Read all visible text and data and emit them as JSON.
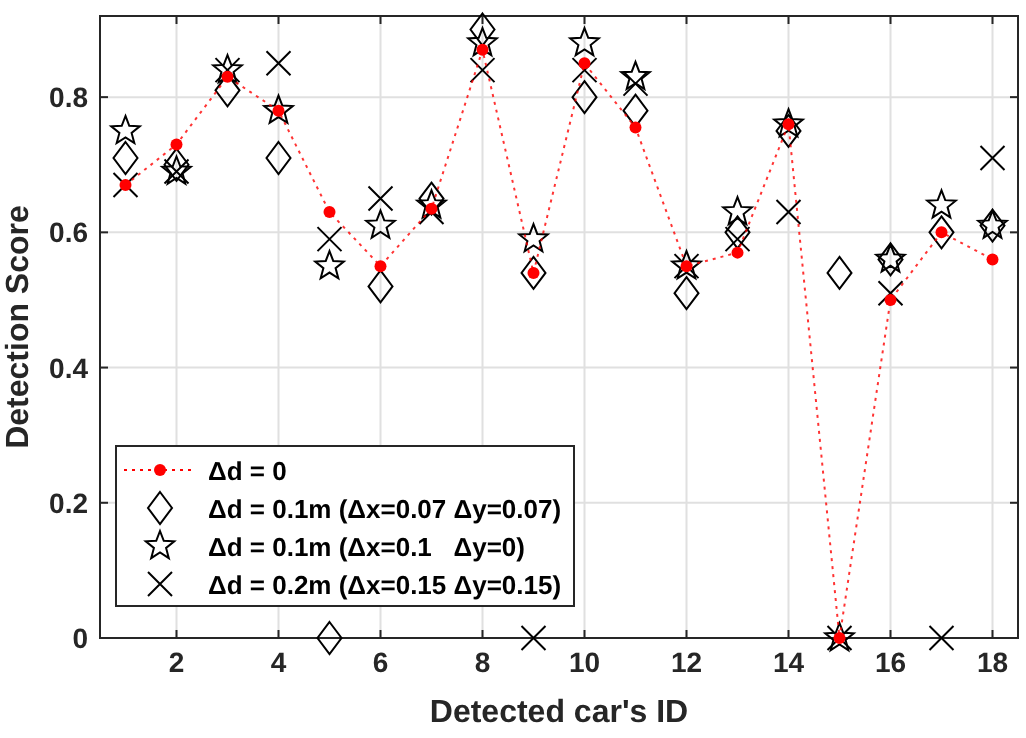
{
  "chart_data": {
    "type": "line",
    "xlabel": "Detected car's ID",
    "ylabel": "Detection Score",
    "x": [
      1,
      2,
      3,
      4,
      5,
      6,
      7,
      8,
      9,
      10,
      11,
      12,
      13,
      14,
      15,
      16,
      17,
      18
    ],
    "series": [
      {
        "name": "Δd = 0",
        "type": "line",
        "color": "#ff0000",
        "marker": "circle",
        "line_style": "dotted",
        "values": [
          0.67,
          0.73,
          0.83,
          0.78,
          0.63,
          0.55,
          0.635,
          0.87,
          0.54,
          0.85,
          0.755,
          0.55,
          0.57,
          0.76,
          0,
          0.5,
          0.6,
          0.56
        ]
      },
      {
        "name": "Δd = 0.1m (Δx=0.07 Δy=0.07)",
        "type": "scatter",
        "color": "#000000",
        "marker": "diamond",
        "values": [
          0.71,
          0.7,
          0.81,
          0.71,
          0,
          0.52,
          0.65,
          0.9,
          0.54,
          0.8,
          0.78,
          0.51,
          0.6,
          0.75,
          0.54,
          0.56,
          0.6,
          0.61
        ]
      },
      {
        "name": "Δd = 0.1m (Δx=0.1   Δy=0)",
        "type": "scatter",
        "color": "#000000",
        "marker": "star",
        "values": [
          0.75,
          0.69,
          0.84,
          0.78,
          0.55,
          0.61,
          0.64,
          0.88,
          0.59,
          0.88,
          0.83,
          0.55,
          0.63,
          0.76,
          0,
          0.56,
          0.64,
          0.61
        ]
      },
      {
        "name": "Δd = 0.2m (Δx=0.15 Δy=0.15)",
        "type": "scatter",
        "color": "#000000",
        "marker": "cross",
        "values": [
          0.67,
          0.69,
          0.84,
          0.85,
          0.59,
          0.65,
          0.63,
          0.84,
          0,
          0.84,
          0.82,
          0.55,
          0.59,
          0.63,
          0,
          0.51,
          0,
          0.71
        ]
      }
    ],
    "xlim": [
      0.5,
      18.5
    ],
    "xticks": [
      2,
      4,
      6,
      8,
      10,
      12,
      14,
      16,
      18
    ],
    "ylim": [
      0,
      0.92
    ],
    "yticks": [
      0,
      0.2,
      0.4,
      0.6,
      0.8
    ],
    "grid": true,
    "legend": "bottom left"
  }
}
